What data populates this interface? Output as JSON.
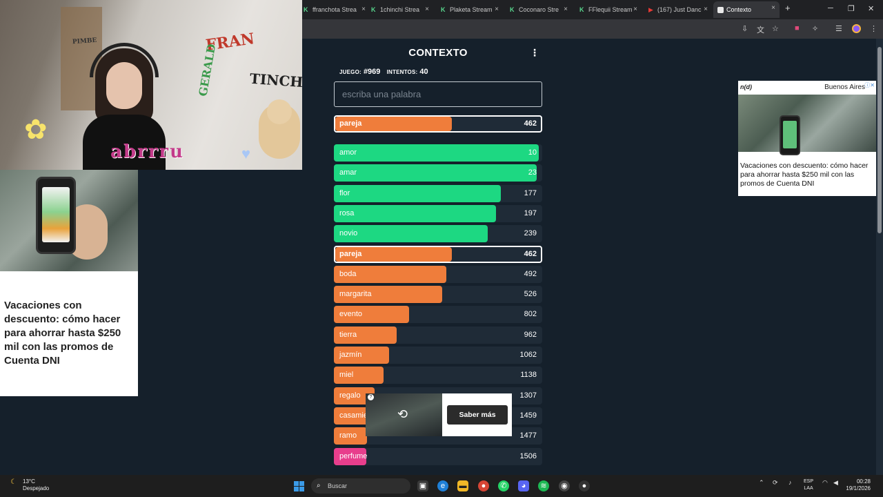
{
  "browser": {
    "tabs": [
      {
        "label": "ffranchota Strea",
        "icon": "kick-icon"
      },
      {
        "label": "1chinchi Strea",
        "icon": "kick-icon"
      },
      {
        "label": "Plaketa Stream",
        "icon": "kick-icon"
      },
      {
        "label": "Coconaro Stre",
        "icon": "kick-icon"
      },
      {
        "label": "FFlequii Stream",
        "icon": "kick-icon"
      },
      {
        "label": "(167) Just Danc",
        "icon": "youtube-icon"
      },
      {
        "label": "Contexto",
        "icon": "contexto-icon"
      }
    ],
    "new_tab": "+",
    "close": "×"
  },
  "game": {
    "title": "CONTEXTO",
    "menu_icon": "⋮",
    "game_label": "JUEGO:",
    "game_number": "#969",
    "attempts_label": "INTENTOS:",
    "attempts": "40",
    "input_placeholder": "escriba una palabra",
    "last_guess": {
      "word": "pareja",
      "rank": "462",
      "fill": 0.56,
      "color": "#ef7d3b"
    },
    "guesses": [
      {
        "word": "amor",
        "rank": "10",
        "fill": 0.985,
        "color": "#1dd882"
      },
      {
        "word": "amar",
        "rank": "23",
        "fill": 0.975,
        "color": "#1dd882"
      },
      {
        "word": "flor",
        "rank": "177",
        "fill": 0.8,
        "color": "#1dd882"
      },
      {
        "word": "rosa",
        "rank": "197",
        "fill": 0.777,
        "color": "#1dd882"
      },
      {
        "word": "novio",
        "rank": "239",
        "fill": 0.74,
        "color": "#1dd882"
      },
      {
        "word": "pareja",
        "rank": "462",
        "fill": 0.56,
        "color": "#ef7d3b",
        "highlight": true
      },
      {
        "word": "boda",
        "rank": "492",
        "fill": 0.54,
        "color": "#ef7d3b"
      },
      {
        "word": "margarita",
        "rank": "526",
        "fill": 0.52,
        "color": "#ef7d3b"
      },
      {
        "word": "evento",
        "rank": "802",
        "fill": 0.36,
        "color": "#ef7d3b"
      },
      {
        "word": "tierra",
        "rank": "962",
        "fill": 0.3,
        "color": "#ef7d3b"
      },
      {
        "word": "jazmín",
        "rank": "1062",
        "fill": 0.265,
        "color": "#ef7d3b"
      },
      {
        "word": "miel",
        "rank": "1138",
        "fill": 0.24,
        "color": "#ef7d3b"
      },
      {
        "word": "regalo",
        "rank": "1307",
        "fill": 0.195,
        "color": "#ef7d3b"
      },
      {
        "word": "casamiento",
        "rank": "1459",
        "fill": 0.165,
        "color": "#ef7d3b"
      },
      {
        "word": "ramo",
        "rank": "1477",
        "fill": 0.16,
        "color": "#ef7d3b"
      },
      {
        "word": "perfume",
        "rank": "1506",
        "fill": 0.155,
        "color": "#e83e8c"
      }
    ]
  },
  "ads": {
    "right": {
      "brand": "n(d)",
      "city": "Buenos Aires",
      "headline": "Vacaciones con descuento: cómo hacer para ahorrar hasta $250 mil con las promos de Cuenta DNI"
    },
    "left": {
      "headline": "Vacaciones con descuento: cómo hacer para ahorrar hasta $250 mil con las promos de Cuenta DNI"
    },
    "bottom": {
      "cta": "Saber más"
    }
  },
  "webcam": {
    "name_overlay": "abrrru",
    "signs": [
      "FRAN",
      "GERALD",
      "TINCHO",
      "PIMBE"
    ]
  },
  "taskbar": {
    "temperature": "13°C",
    "weather": "Despejado",
    "search_placeholder": "Buscar",
    "lang_1": "ESP",
    "lang_2": "LAA",
    "time": "00:28",
    "date": "19/1/2026"
  }
}
